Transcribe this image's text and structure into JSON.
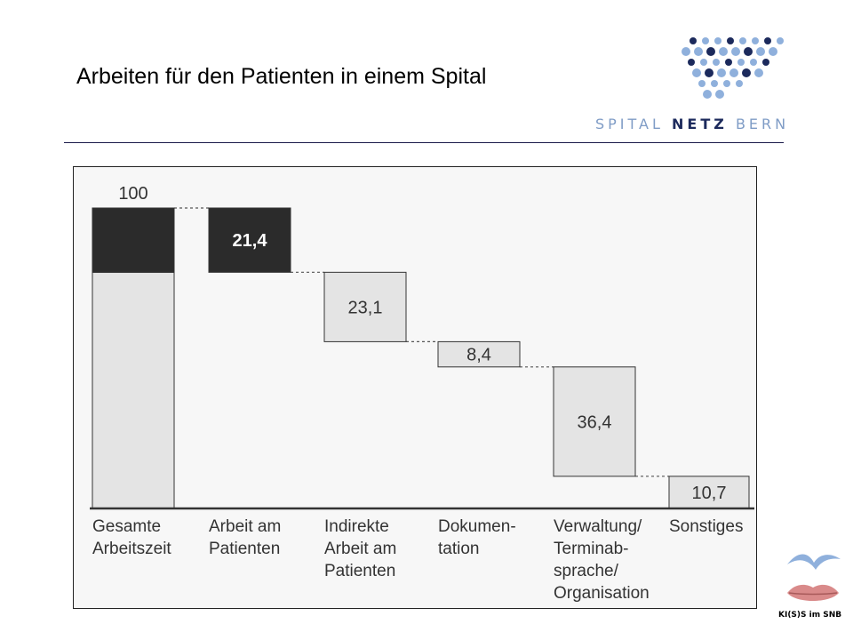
{
  "header": {
    "title": "Arbeiten für den Patienten in einem Spital",
    "logo_word_1": "SPITAL",
    "logo_word_2": "NETZ",
    "logo_word_3": "BERN"
  },
  "footer_logo": {
    "text": "KI(S)S im SNB"
  },
  "colors": {
    "dark_bar": "#2b2b2b",
    "light_bar": "#e4e4e4",
    "bar_stroke": "#333333",
    "logo_light": "#8fb0dc",
    "logo_dark": "#1c2a5c",
    "bird": "#8fb0dc",
    "lips": "#d98a8a"
  },
  "chart_data": {
    "type": "bar",
    "subtype": "waterfall",
    "categories": [
      [
        "Gesamte",
        "Arbeitszeit"
      ],
      [
        "Arbeit am",
        "Patienten"
      ],
      [
        "Indirekte",
        "Arbeit am",
        "Patienten"
      ],
      [
        "Dokumen-",
        "tation"
      ],
      [
        "Verwaltung/",
        "Terminab-",
        "sprache/",
        "Organisation"
      ],
      [
        "Sonstiges"
      ]
    ],
    "values": [
      100,
      21.4,
      23.1,
      8.4,
      36.4,
      10.7
    ],
    "value_labels": [
      "100",
      "21,4",
      "23,1",
      "8,4",
      "36,4",
      "10,7"
    ],
    "total_index": 0,
    "highlight_index": 1,
    "ylim": [
      0,
      100
    ],
    "grid": false,
    "legend": "none"
  }
}
